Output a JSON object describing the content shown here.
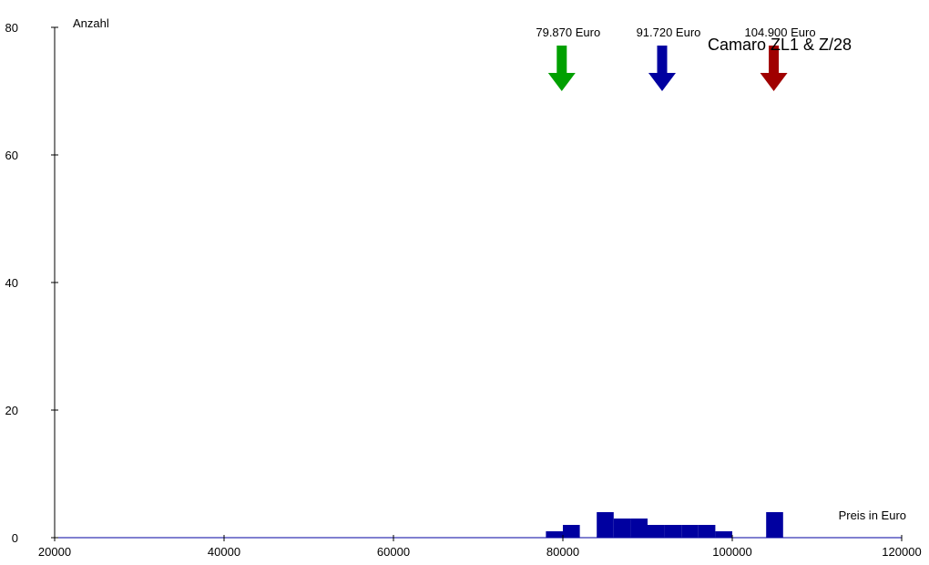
{
  "chart_data": {
    "type": "bar",
    "title": "Camaro ZL1 & Z/28",
    "xlabel": "Preis in Euro",
    "ylabel": "Anzahl",
    "xlim": [
      20000,
      120000
    ],
    "ylim": [
      0,
      80
    ],
    "x_ticks": [
      "20000",
      "40000",
      "60000",
      "80000",
      "100000",
      "120000"
    ],
    "y_ticks": [
      "0",
      "20",
      "40",
      "60",
      "80"
    ],
    "bin_width": 2000,
    "bins": [
      {
        "x": 78000,
        "count": 1
      },
      {
        "x": 80000,
        "count": 2
      },
      {
        "x": 84000,
        "count": 4
      },
      {
        "x": 86000,
        "count": 3
      },
      {
        "x": 88000,
        "count": 3
      },
      {
        "x": 90000,
        "count": 2
      },
      {
        "x": 92000,
        "count": 2
      },
      {
        "x": 94000,
        "count": 2
      },
      {
        "x": 96000,
        "count": 2
      },
      {
        "x": 98000,
        "count": 1
      },
      {
        "x": 104000,
        "count": 4
      }
    ],
    "markers": [
      {
        "value": 79870,
        "label": "79.870 Euro",
        "color": "#00a000"
      },
      {
        "value": 91720,
        "label": "91.720 Euro",
        "color": "#0000a0"
      },
      {
        "value": 104900,
        "label": "104.900 Euro",
        "color": "#a00000"
      }
    ],
    "bar_color": "#0000a0",
    "grid": false
  }
}
